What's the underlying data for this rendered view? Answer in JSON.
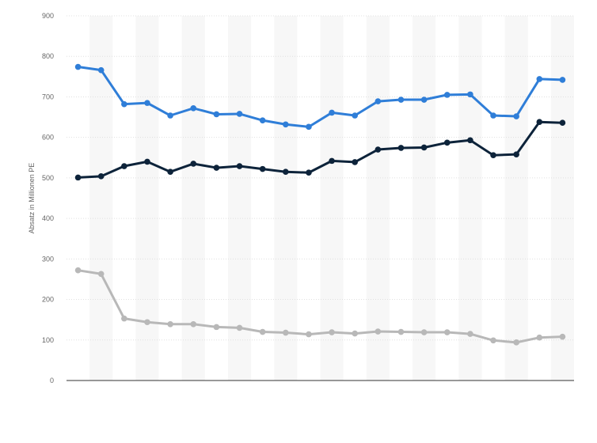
{
  "chart_data": {
    "type": "line",
    "ylabel": "Absatz in Millionen PE",
    "xlabel": "",
    "ylim": [
      0,
      900
    ],
    "yticks": [
      "0",
      "100",
      "200",
      "300",
      "400",
      "500",
      "600",
      "700",
      "800",
      "900"
    ],
    "x": [
      1,
      2,
      3,
      4,
      5,
      6,
      7,
      8,
      9,
      10,
      11,
      12,
      13,
      14,
      15,
      16,
      17,
      18,
      19,
      20,
      21,
      22
    ],
    "grid": true,
    "legend": "none",
    "series": [
      {
        "color": "#2f7ed8",
        "values": [
          774,
          766,
          682,
          685,
          654,
          672,
          657,
          658,
          642,
          632,
          626,
          661,
          654,
          689,
          693,
          693,
          705,
          706,
          654,
          652,
          744,
          742
        ]
      },
      {
        "color": "#0d233a",
        "values": [
          501,
          504,
          529,
          540,
          515,
          535,
          525,
          529,
          522,
          515,
          513,
          542,
          539,
          570,
          574,
          575,
          587,
          593,
          556,
          558,
          638,
          636
        ]
      },
      {
        "color": "#b8b8b8",
        "values": [
          272,
          263,
          153,
          144,
          139,
          139,
          132,
          130,
          120,
          118,
          114,
          119,
          116,
          121,
          120,
          119,
          119,
          115,
          99,
          94,
          106,
          108
        ]
      }
    ]
  }
}
